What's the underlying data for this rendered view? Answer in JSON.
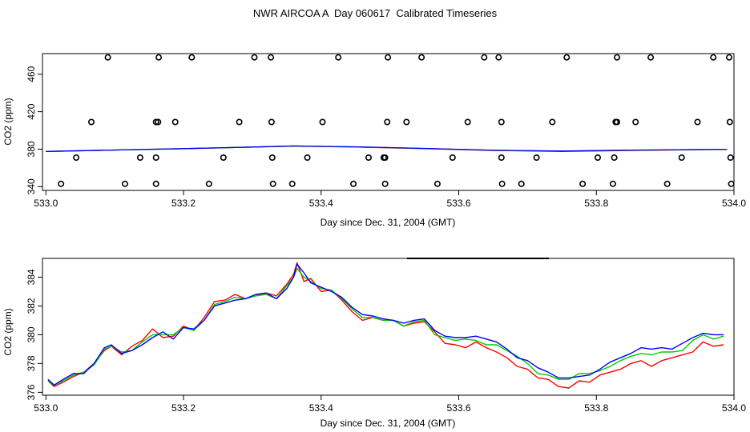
{
  "title": "NWR AIRCOA A  Day 060617  Calibrated Timeseries",
  "colors": {
    "red": "#ff0000",
    "green": "#00cc00",
    "blue": "#0000ff",
    "axis": "#000000"
  },
  "chart_data": [
    {
      "type": "scatter",
      "xlabel": "Day since Dec. 31, 2004 (GMT)",
      "ylabel": "CO2 (ppm)",
      "xlim": [
        532.995,
        534.0
      ],
      "ylim": [
        336,
        482
      ],
      "xticks": [
        "533.0",
        "533.2",
        "533.4",
        "533.6",
        "533.8",
        "534.0"
      ],
      "xtick_values": [
        533.0,
        533.2,
        533.4,
        533.6,
        533.8,
        534.0
      ],
      "yticks": [
        "340",
        "380",
        "420",
        "460"
      ],
      "ytick_values": [
        340,
        380,
        420,
        460
      ],
      "markers": {
        "levels": [
          343,
          371,
          409,
          478
        ],
        "x_by_level": [
          [
            533.022,
            533.115,
            533.16,
            533.237,
            533.33,
            533.358,
            533.447,
            533.493,
            533.569,
            533.663,
            533.691,
            533.78,
            533.824,
            533.903,
            533.996
          ],
          [
            533.044,
            533.137,
            533.16,
            533.258,
            533.329,
            533.38,
            533.469,
            533.493,
            533.491,
            533.591,
            533.662,
            533.713,
            533.802,
            533.826,
            533.924,
            533.995
          ],
          [
            533.066,
            533.16,
            533.163,
            533.188,
            533.281,
            533.328,
            533.402,
            533.496,
            533.524,
            533.613,
            533.662,
            533.736,
            533.828,
            533.83,
            533.857,
            533.947,
            533.994
          ],
          [
            533.09,
            533.164,
            533.212,
            533.303,
            533.327,
            533.425,
            533.497,
            533.546,
            533.637,
            533.658,
            533.757,
            533.83,
            533.879,
            533.97,
            533.993
          ]
        ]
      },
      "series": [
        {
          "color": "#ff0000",
          "x": [
            533.0,
            533.1,
            533.2,
            533.3,
            533.36,
            533.45,
            533.55,
            533.65,
            533.75,
            533.85,
            533.99
          ],
          "values": [
            377.5,
            379.0,
            380.5,
            382.2,
            383.2,
            382.3,
            380.5,
            378.6,
            377.6,
            378.6,
            379.7
          ]
        },
        {
          "color": "#00cc00",
          "x": [
            533.0,
            533.1,
            533.2,
            533.3,
            533.36,
            533.45,
            533.55,
            533.65,
            533.75,
            533.85,
            533.99
          ],
          "values": [
            377.6,
            379.1,
            380.6,
            382.3,
            383.4,
            382.4,
            380.7,
            378.8,
            377.9,
            378.9,
            379.9
          ]
        },
        {
          "color": "#0000ff",
          "x": [
            533.0,
            533.1,
            533.2,
            533.3,
            533.36,
            533.45,
            533.55,
            533.65,
            533.75,
            533.85,
            533.99
          ],
          "values": [
            377.6,
            379.1,
            380.6,
            382.3,
            383.5,
            382.5,
            380.8,
            378.9,
            378.0,
            379.0,
            379.9
          ]
        }
      ]
    },
    {
      "type": "line",
      "xlabel": "Day since Dec. 31, 2004 (GMT)",
      "ylabel": "CO2 (ppm)",
      "xlim": [
        532.995,
        534.0
      ],
      "ylim": [
        375.8,
        385.3
      ],
      "xticks": [
        "533.0",
        "533.2",
        "533.4",
        "533.6",
        "533.8",
        "534.0"
      ],
      "xtick_values": [
        533.0,
        533.2,
        533.4,
        533.6,
        533.8,
        534.0
      ],
      "yticks": [
        "376",
        "378",
        "380",
        "382",
        "384"
      ],
      "ytick_values": [
        376,
        378,
        380,
        382,
        384
      ],
      "series": [
        {
          "color": "#ff0000",
          "x": [
            533.003,
            533.012,
            533.025,
            533.04,
            533.055,
            533.07,
            533.085,
            533.095,
            533.11,
            533.125,
            533.14,
            533.155,
            533.17,
            533.185,
            533.2,
            533.215,
            533.23,
            533.245,
            533.26,
            533.275,
            533.29,
            533.305,
            533.32,
            533.335,
            533.35,
            533.36,
            533.365,
            533.375,
            533.385,
            533.4,
            533.415,
            533.43,
            533.445,
            533.46,
            533.475,
            533.49,
            533.505,
            533.52,
            533.535,
            533.55,
            533.565,
            533.58,
            533.595,
            533.61,
            533.625,
            533.64,
            533.655,
            533.67,
            533.685,
            533.7,
            533.715,
            533.73,
            533.745,
            533.76,
            533.775,
            533.79,
            533.805,
            533.82,
            533.835,
            533.85,
            533.865,
            533.88,
            533.895,
            533.91,
            533.925,
            533.94,
            533.955,
            533.97,
            533.985
          ],
          "values": [
            376.8,
            376.4,
            376.7,
            377.1,
            377.4,
            378.0,
            378.9,
            379.2,
            378.6,
            379.2,
            379.6,
            380.4,
            379.8,
            379.9,
            380.6,
            380.3,
            381.2,
            382.3,
            382.4,
            382.8,
            382.5,
            382.7,
            382.9,
            382.7,
            383.5,
            384.2,
            385.0,
            383.7,
            383.9,
            383.0,
            383.1,
            382.4,
            381.6,
            381.0,
            381.2,
            381.0,
            381.0,
            380.6,
            380.8,
            380.9,
            380.2,
            379.4,
            379.3,
            379.1,
            379.5,
            379.1,
            378.8,
            378.4,
            377.8,
            377.6,
            377.0,
            376.9,
            376.4,
            376.3,
            376.8,
            376.7,
            377.2,
            377.4,
            377.6,
            378.0,
            378.2,
            377.8,
            378.2,
            378.4,
            378.6,
            378.8,
            379.5,
            379.2,
            379.3
          ]
        },
        {
          "color": "#00cc00",
          "x": [
            533.003,
            533.012,
            533.025,
            533.04,
            533.055,
            533.07,
            533.085,
            533.095,
            533.11,
            533.125,
            533.14,
            533.155,
            533.17,
            533.185,
            533.2,
            533.215,
            533.23,
            533.245,
            533.26,
            533.275,
            533.29,
            533.305,
            533.32,
            533.335,
            533.35,
            533.36,
            533.365,
            533.375,
            533.385,
            533.4,
            533.415,
            533.43,
            533.445,
            533.46,
            533.475,
            533.49,
            533.505,
            533.52,
            533.535,
            533.55,
            533.565,
            533.58,
            533.595,
            533.61,
            533.625,
            533.64,
            533.655,
            533.67,
            533.685,
            533.7,
            533.715,
            533.73,
            533.745,
            533.76,
            533.775,
            533.79,
            533.805,
            533.82,
            533.835,
            533.85,
            533.865,
            533.88,
            533.895,
            533.91,
            533.925,
            533.94,
            533.955,
            533.97,
            533.985
          ],
          "values": [
            376.8,
            376.5,
            376.8,
            377.2,
            377.4,
            377.9,
            379.0,
            379.2,
            378.8,
            378.9,
            379.5,
            380.0,
            380.0,
            380.0,
            380.5,
            380.3,
            381.0,
            382.1,
            382.3,
            382.6,
            382.5,
            382.7,
            382.8,
            382.5,
            383.4,
            384.0,
            384.6,
            384.0,
            383.7,
            383.2,
            383.1,
            382.5,
            381.8,
            381.2,
            381.2,
            381.0,
            381.0,
            380.6,
            380.9,
            381.0,
            380.0,
            379.8,
            379.6,
            379.7,
            379.6,
            379.3,
            379.3,
            378.9,
            378.5,
            378.0,
            377.3,
            377.2,
            376.9,
            376.9,
            377.3,
            377.3,
            377.5,
            377.8,
            378.2,
            378.5,
            378.7,
            378.6,
            378.8,
            378.8,
            378.9,
            379.6,
            380.0,
            379.7,
            379.9
          ]
        },
        {
          "color": "#0000ff",
          "x": [
            533.003,
            533.012,
            533.025,
            533.04,
            533.055,
            533.07,
            533.085,
            533.095,
            533.11,
            533.125,
            533.14,
            533.155,
            533.17,
            533.185,
            533.2,
            533.215,
            533.23,
            533.245,
            533.26,
            533.275,
            533.29,
            533.305,
            533.32,
            533.335,
            533.35,
            533.36,
            533.365,
            533.375,
            533.385,
            533.4,
            533.415,
            533.43,
            533.445,
            533.46,
            533.475,
            533.49,
            533.505,
            533.52,
            533.535,
            533.55,
            533.565,
            533.58,
            533.595,
            533.61,
            533.625,
            533.64,
            533.655,
            533.67,
            533.685,
            533.7,
            533.715,
            533.73,
            533.745,
            533.76,
            533.775,
            533.79,
            533.805,
            533.82,
            533.835,
            533.85,
            533.865,
            533.88,
            533.895,
            533.91,
            533.925,
            533.94,
            533.955,
            533.97,
            533.985
          ],
          "values": [
            376.9,
            376.5,
            376.9,
            377.3,
            377.3,
            378.0,
            379.1,
            379.3,
            378.7,
            378.9,
            379.3,
            379.8,
            380.2,
            379.7,
            380.5,
            380.4,
            381.0,
            382.0,
            382.2,
            382.4,
            382.5,
            382.8,
            382.9,
            382.5,
            383.2,
            384.0,
            384.9,
            384.3,
            383.6,
            383.3,
            383.0,
            382.6,
            381.9,
            381.4,
            381.3,
            381.1,
            381.0,
            380.8,
            381.0,
            381.1,
            380.3,
            379.9,
            379.8,
            379.8,
            379.9,
            379.7,
            379.5,
            379.0,
            378.4,
            378.2,
            377.7,
            377.4,
            377.0,
            377.0,
            377.1,
            377.2,
            377.6,
            378.1,
            378.4,
            378.7,
            379.1,
            379.0,
            379.1,
            379.0,
            379.4,
            379.8,
            380.1,
            380.0,
            380.0
          ]
        }
      ]
    }
  ]
}
